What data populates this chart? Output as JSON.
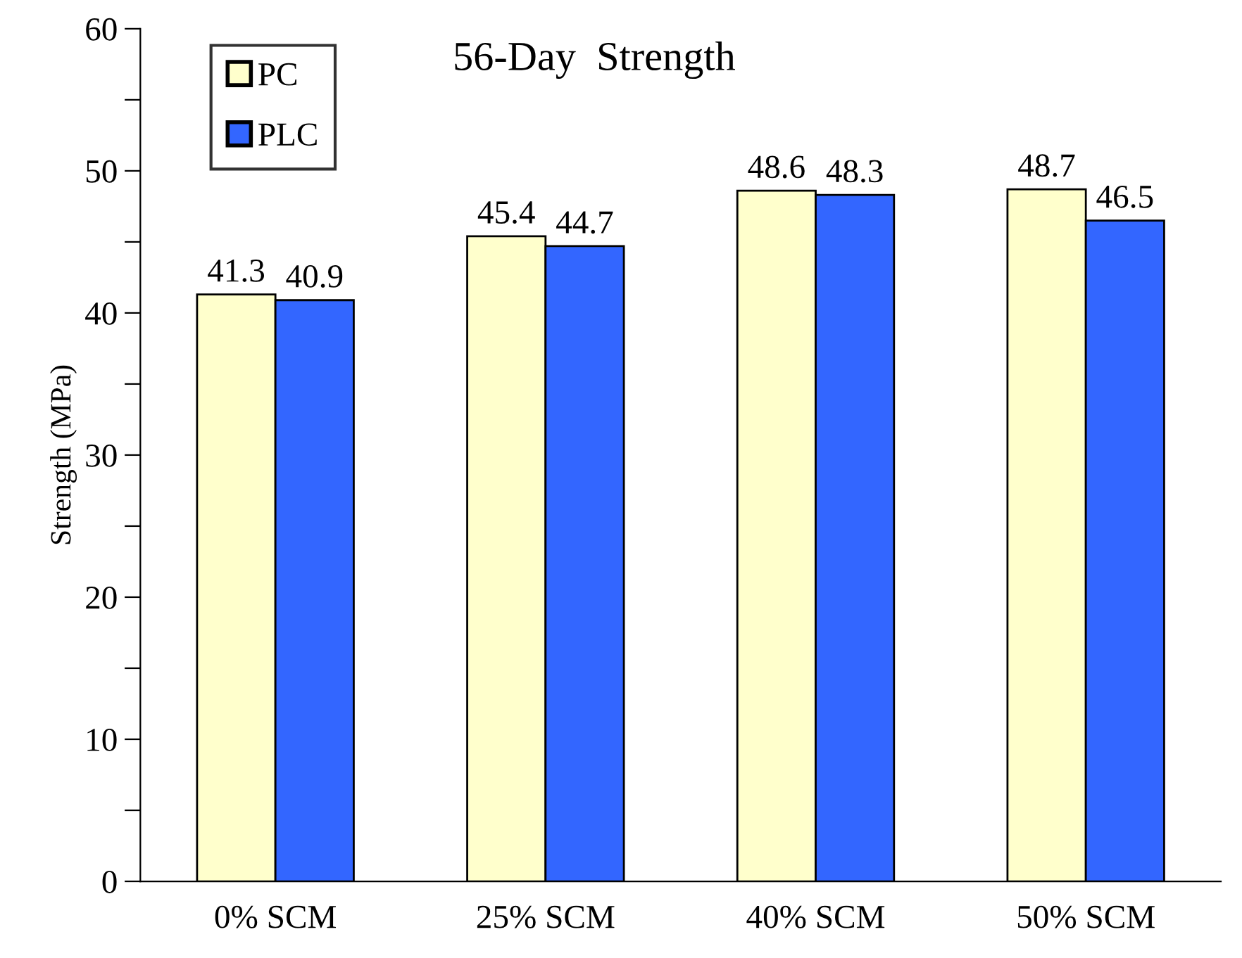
{
  "chart_data": {
    "type": "bar",
    "title": "56-Day  Strength",
    "ylabel": "Strength (MPa)",
    "categories": [
      "0% SCM",
      "25% SCM",
      "40% SCM",
      "50% SCM"
    ],
    "series": [
      {
        "name": "PC",
        "color": "#ffffcc",
        "values": [
          41.3,
          45.4,
          48.6,
          48.7
        ]
      },
      {
        "name": "PLC",
        "color": "#3366ff",
        "values": [
          40.9,
          44.7,
          48.3,
          46.5
        ]
      }
    ],
    "ylim": [
      0,
      60
    ],
    "yticks": [
      0,
      {
        "value": 5,
        "label": null
      },
      10,
      {
        "value": 15,
        "label": null
      },
      20,
      {
        "value": 25,
        "label": null
      },
      30,
      {
        "value": 35,
        "label": null
      },
      40,
      {
        "value": 45,
        "label": null
      },
      50,
      {
        "value": 55,
        "label": null
      },
      60
    ],
    "data_labels": true,
    "grid": false,
    "legend": "top left"
  }
}
